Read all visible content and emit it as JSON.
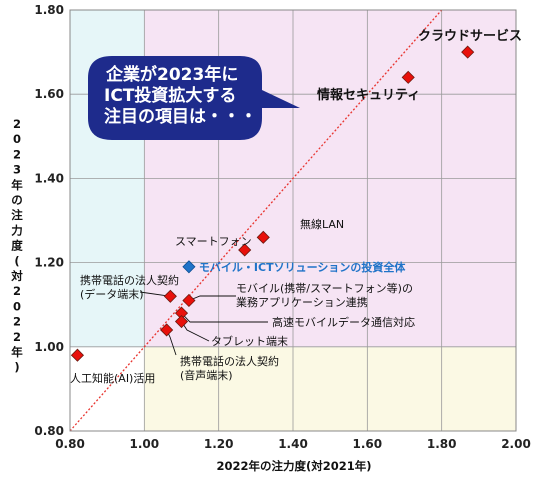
{
  "chart_data": {
    "type": "scatter",
    "xlabel": "2022年の注力度(対2021年)",
    "ylabel": "2023年の注力度(対2022年)",
    "xlim": [
      0.8,
      2.0
    ],
    "ylim": [
      0.8,
      1.8
    ],
    "xticks": [
      "0.80",
      "1.00",
      "1.20",
      "1.40",
      "1.60",
      "1.80",
      "2.00"
    ],
    "yticks": [
      "0.80",
      "1.00",
      "1.20",
      "1.40",
      "1.60",
      "1.80"
    ],
    "grid": true,
    "reference_line": "y = x",
    "points": [
      {
        "label": "クラウドサービス",
        "x": 1.87,
        "y": 1.7
      },
      {
        "label": "情報セキュリティ",
        "x": 1.71,
        "y": 1.64
      },
      {
        "label": "無線LAN",
        "x": 1.32,
        "y": 1.26
      },
      {
        "label": "スマートフォン",
        "x": 1.27,
        "y": 1.23
      },
      {
        "label": "携帯電話の法人契約\n(データ端末)",
        "x": 1.07,
        "y": 1.12
      },
      {
        "label": "モバイル(携帯/スマートフォン等)の\n業務アプリケーション連携",
        "x": 1.12,
        "y": 1.11
      },
      {
        "label": "高速モバイルデータ通信対応",
        "x": 1.1,
        "y": 1.08
      },
      {
        "label": "タブレット端末",
        "x": 1.1,
        "y": 1.06
      },
      {
        "label": "携帯電話の法人契約\n(音声端末)",
        "x": 1.06,
        "y": 1.04
      },
      {
        "label": "人工知能(AI)活用",
        "x": 0.82,
        "y": 0.98
      }
    ],
    "overall": {
      "label": "モバイル・ICTソリューションの投資全体",
      "x": 1.12,
      "y": 1.19
    },
    "callout_lines": [
      "企業が2023年に",
      "ICT投資拡大する",
      "注目の項目は・・・"
    ],
    "colors": {
      "marker": "#e8100b",
      "marker_edge": "#6b1a10",
      "overall_marker": "#1f73c8",
      "diagonal": "#e8332e",
      "zone_pink": "#f6e4f4",
      "zone_blue": "#e6f6f8",
      "zone_yellow": "#fbf9e4",
      "bubble": "#1e2b8c"
    }
  }
}
